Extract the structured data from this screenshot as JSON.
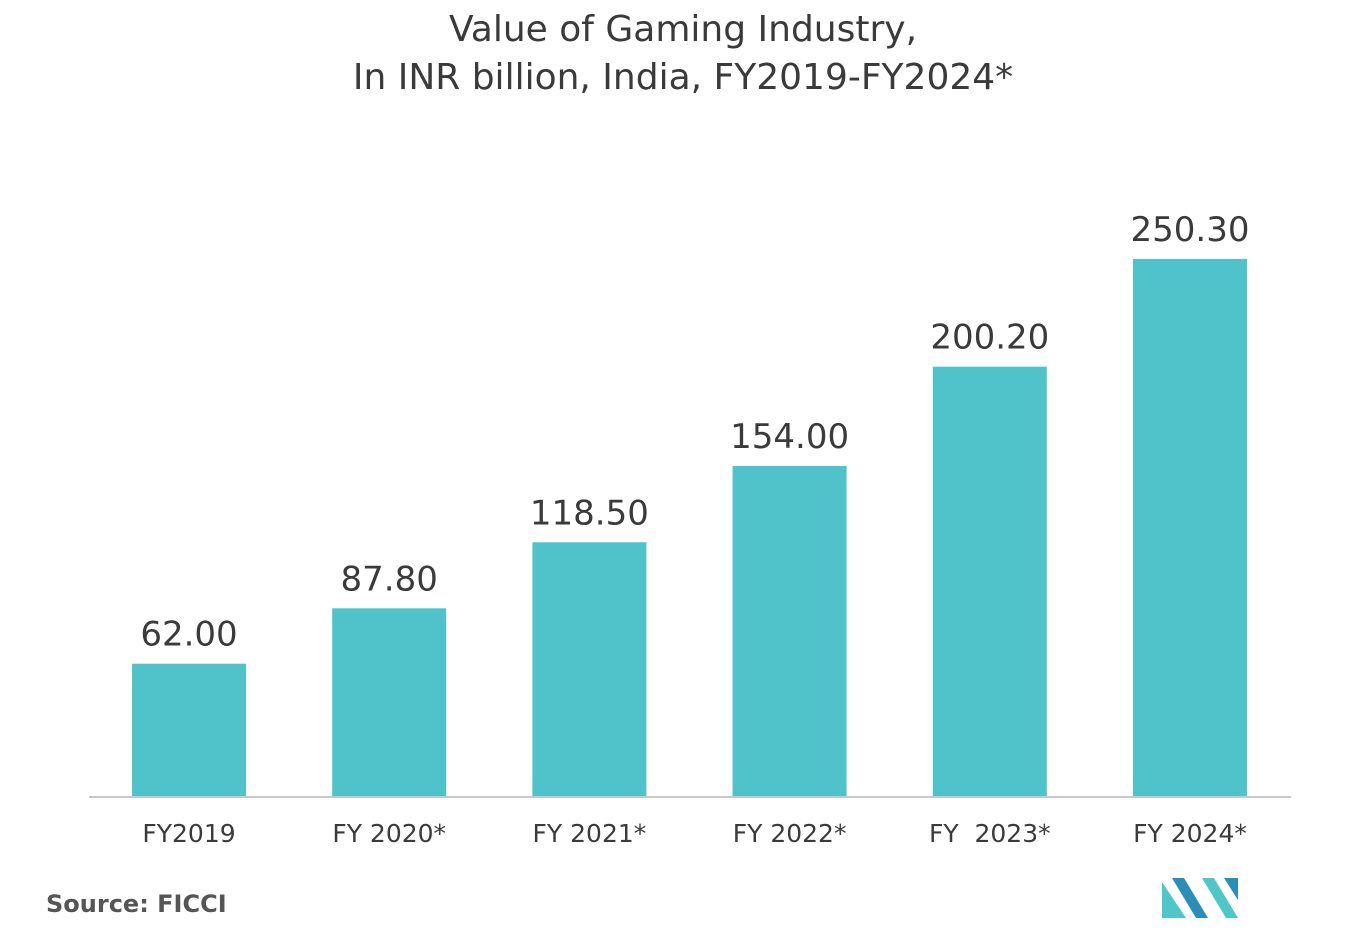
{
  "chart_data": {
    "type": "bar",
    "title": [
      "Value of Gaming Industry,",
      "In INR billion, India, FY2019-FY2024*"
    ],
    "categories": [
      "FY2019",
      "FY 2020*",
      "FY 2021*",
      "FY 2022*",
      "FY  2023*",
      "FY 2024*"
    ],
    "values": [
      62.0,
      87.8,
      118.5,
      154.0,
      200.2,
      250.3
    ],
    "value_labels": [
      "62.00",
      "87.80",
      "118.50",
      "154.00",
      "200.20",
      "250.30"
    ],
    "xlabel": "",
    "ylabel": "",
    "ylim": [
      0,
      250.3
    ],
    "grid": false,
    "bar_color": "#50c2c9",
    "axis_color": "#c8c8c8",
    "text_color": "#3a3a3a"
  },
  "source": "Source: FICCI",
  "logo": {
    "icon": "mordor-intelligence-logo-icon",
    "colors": [
      "#2a8fb8",
      "#4fc6c9"
    ]
  }
}
